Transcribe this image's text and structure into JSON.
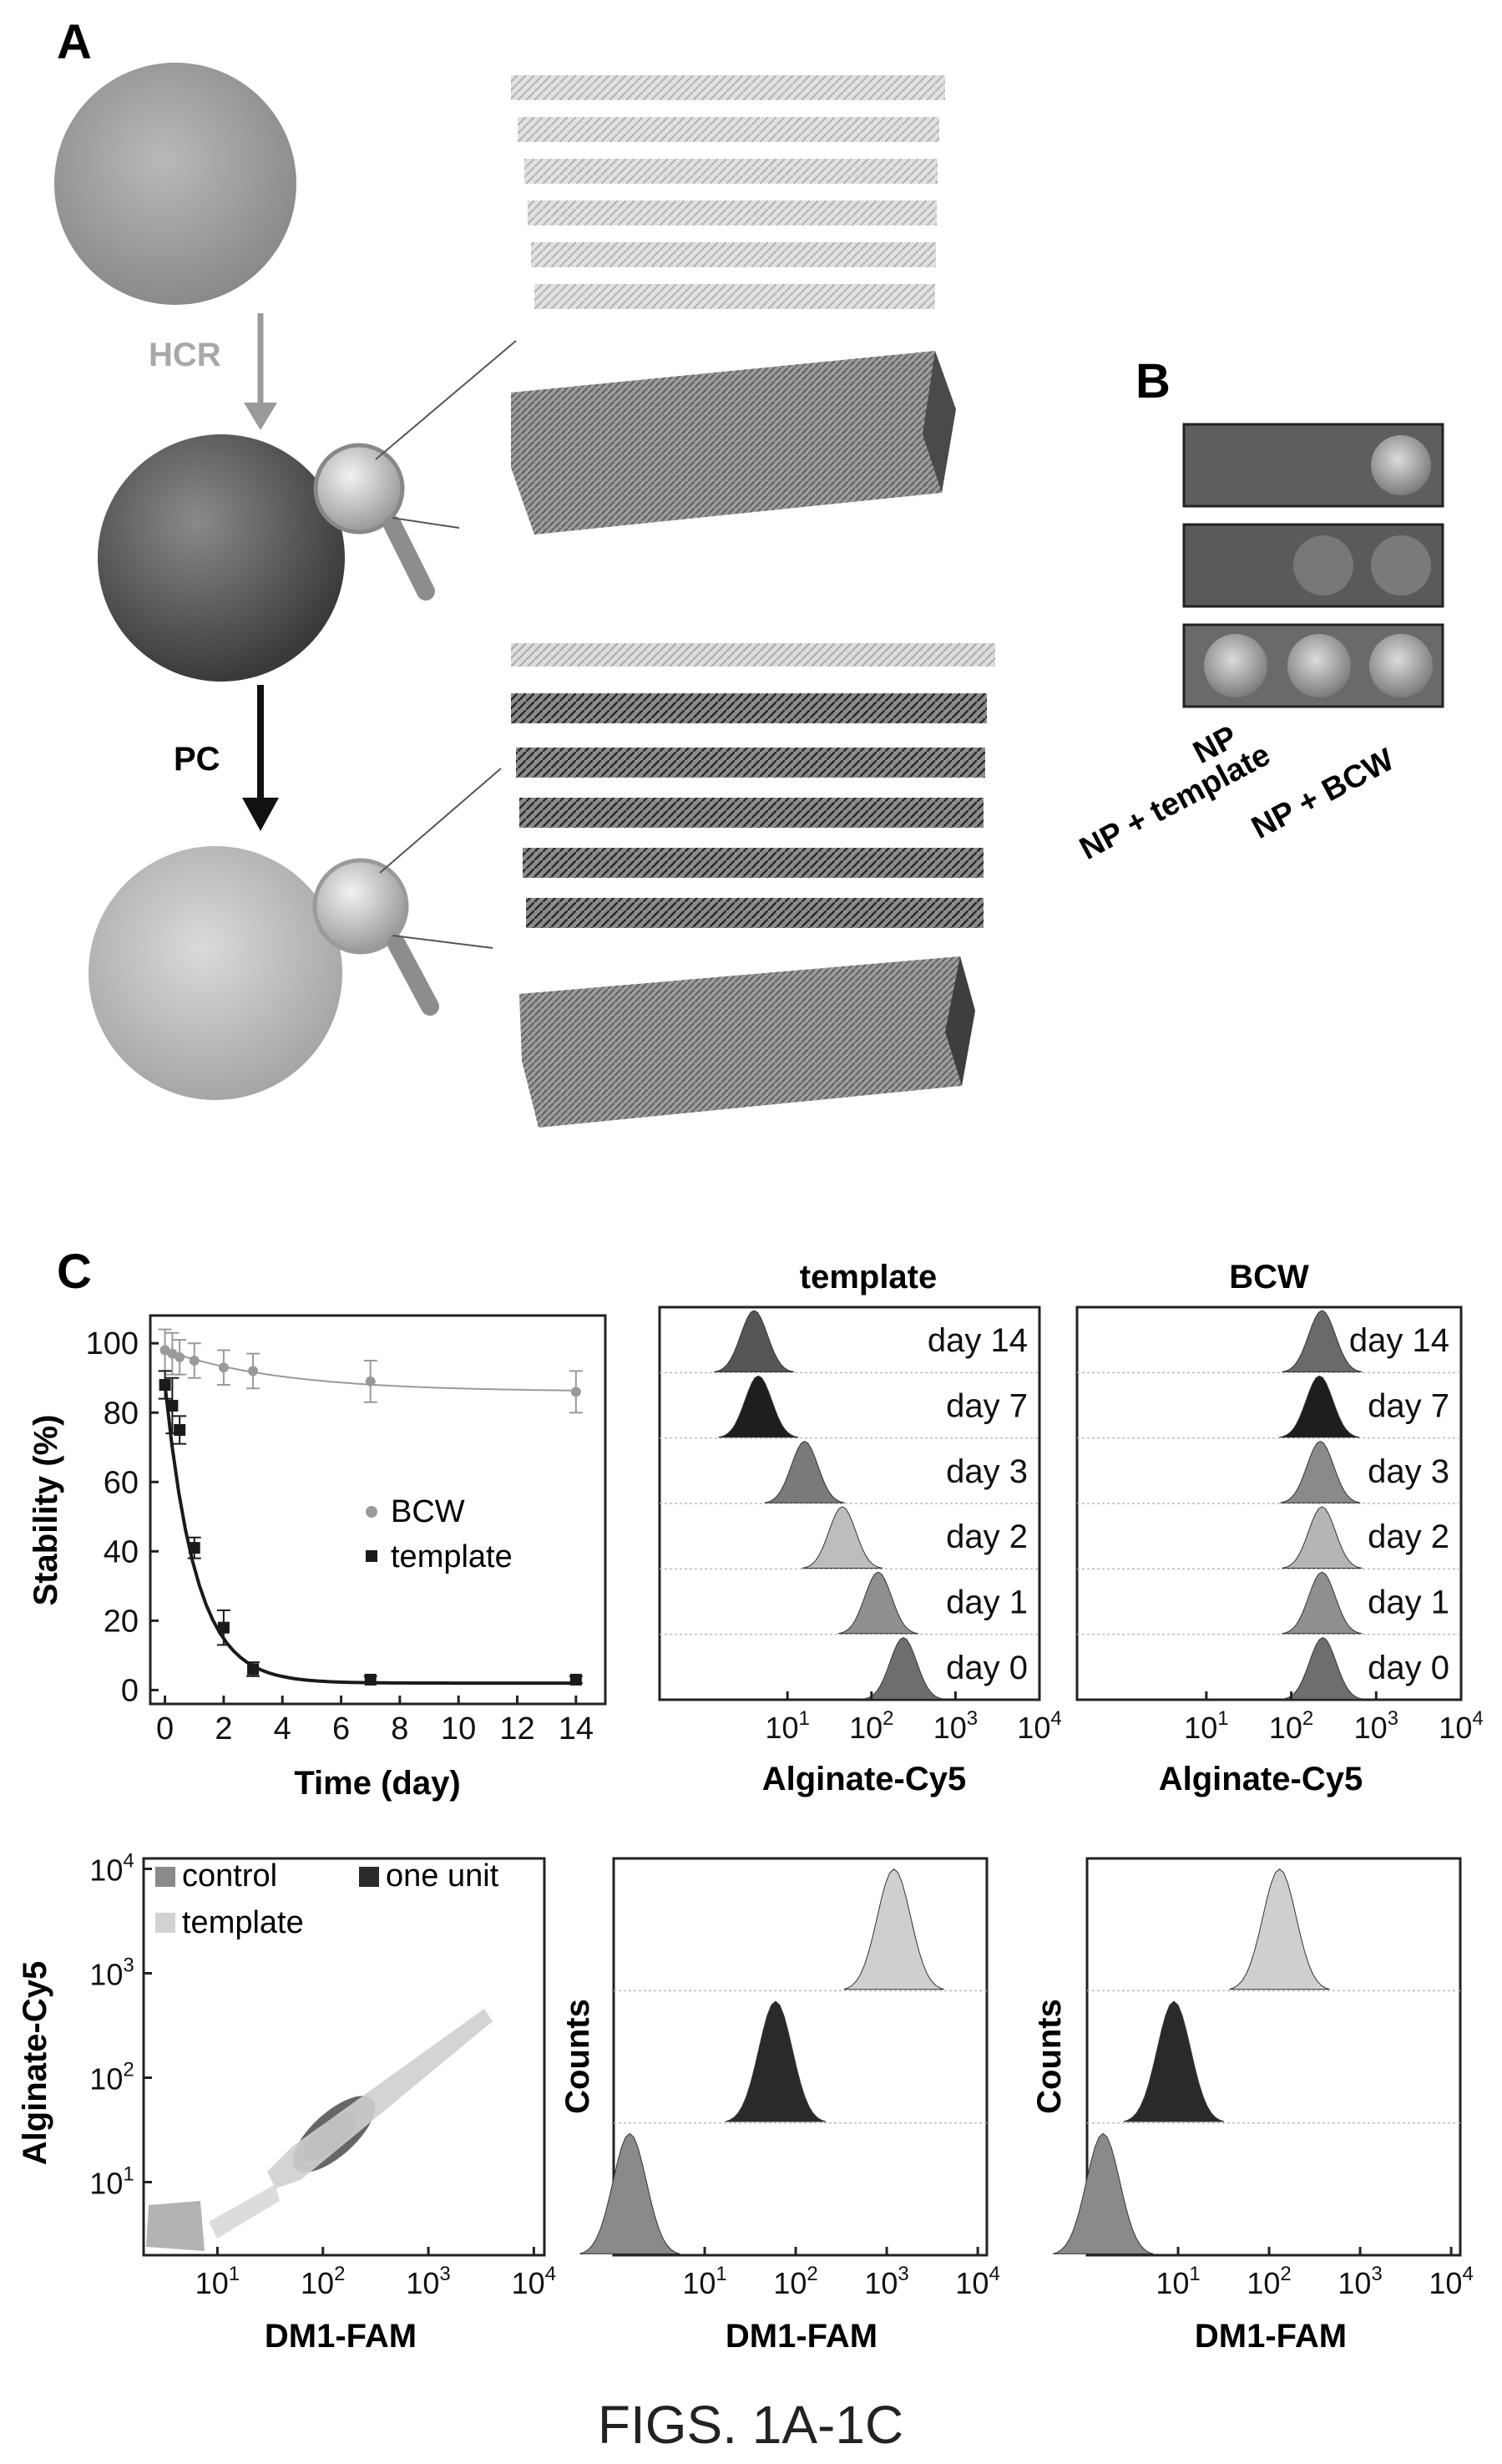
{
  "figure_caption": "FIGS. 1A-1C",
  "panel_a": {
    "letter": "A",
    "arrow1_label": "HCR",
    "arrow2_label": "PC"
  },
  "panel_b": {
    "letter": "B",
    "labels": [
      "NP",
      "NP + template",
      "NP + BCW"
    ]
  },
  "panel_c": {
    "letter": "C"
  },
  "chart_data": [
    {
      "id": "stability",
      "type": "scatter",
      "xlabel": "Time (day)",
      "ylabel": "Stability (%)",
      "xlim": [
        -0.5,
        15
      ],
      "ylim": [
        -4,
        108
      ],
      "xticks": [
        0,
        2,
        4,
        6,
        8,
        10,
        12,
        14
      ],
      "yticks": [
        0,
        20,
        40,
        60,
        80,
        100
      ],
      "series": [
        {
          "name": "BCW",
          "color": "#9a9a9a",
          "x": [
            0,
            0.25,
            0.5,
            1,
            2,
            3,
            7,
            14
          ],
          "y": [
            98,
            97,
            96,
            95,
            93,
            92,
            89,
            86
          ],
          "err": [
            6,
            6,
            5,
            5,
            5,
            5,
            6,
            6
          ]
        },
        {
          "name": "template",
          "color": "#1a1a1a",
          "x": [
            0,
            0.25,
            0.5,
            1,
            2,
            3,
            7,
            14
          ],
          "y": [
            88,
            82,
            75,
            41,
            18,
            6,
            3,
            3
          ],
          "err": [
            4,
            8,
            4,
            3,
            5,
            2,
            1,
            1
          ]
        }
      ]
    },
    {
      "id": "hist_template",
      "type": "area",
      "title": "template",
      "xlabel": "Alginate-Cy5",
      "xscale": "log",
      "xlim": [
        0.3,
        10000
      ],
      "xticks": [
        "10^1",
        "10^2",
        "10^3",
        "10^4"
      ],
      "series": [
        {
          "name": "day 14",
          "peak": 4
        },
        {
          "name": "day 7",
          "peak": 4.5
        },
        {
          "name": "day 3",
          "peak": 16
        },
        {
          "name": "day 2",
          "peak": 45
        },
        {
          "name": "day 1",
          "peak": 120
        },
        {
          "name": "day 0",
          "peak": 240
        }
      ]
    },
    {
      "id": "hist_bcw",
      "type": "area",
      "title": "BCW",
      "xlabel": "Alginate-Cy5",
      "xscale": "log",
      "xlim": [
        0.3,
        10000
      ],
      "xticks": [
        "10^1",
        "10^2",
        "10^3",
        "10^4"
      ],
      "series": [
        {
          "name": "day 14",
          "peak": 230
        },
        {
          "name": "day 7",
          "peak": 215
        },
        {
          "name": "day 3",
          "peak": 220
        },
        {
          "name": "day 2",
          "peak": 230
        },
        {
          "name": "day 1",
          "peak": 230
        },
        {
          "name": "day 0",
          "peak": 235
        }
      ]
    },
    {
      "id": "scatter_dm1",
      "type": "scatter",
      "xlabel": "DM1-FAM",
      "ylabel": "Alginate-Cy5",
      "xscale": "log",
      "yscale": "log",
      "xticks": [
        "10^1",
        "10^2",
        "10^3",
        "10^4"
      ],
      "yticks": [
        "10^1",
        "10^2",
        "10^3",
        "10^4"
      ],
      "legend": [
        "control",
        "one unit",
        "template"
      ]
    },
    {
      "id": "counts_a",
      "type": "area",
      "xlabel": "DM1-FAM",
      "ylabel": "Counts",
      "xscale": "log",
      "xticks": [
        "10^1",
        "10^2",
        "10^3",
        "10^4"
      ],
      "series": [
        {
          "peak": 1200,
          "color": "#cfcfcf"
        },
        {
          "peak": 60,
          "color": "#2a2a2a"
        },
        {
          "peak": 1.5,
          "color": "#8a8a8a"
        }
      ]
    },
    {
      "id": "counts_b",
      "type": "area",
      "xlabel": "DM1-FAM",
      "ylabel": "Counts",
      "xscale": "log",
      "xticks": [
        "10^1",
        "10^2",
        "10^3",
        "10^4"
      ],
      "series": [
        {
          "peak": 130,
          "color": "#cfcfcf"
        },
        {
          "peak": 9,
          "color": "#2a2a2a"
        },
        {
          "peak": 1.5,
          "color": "#8a8a8a"
        }
      ]
    }
  ]
}
